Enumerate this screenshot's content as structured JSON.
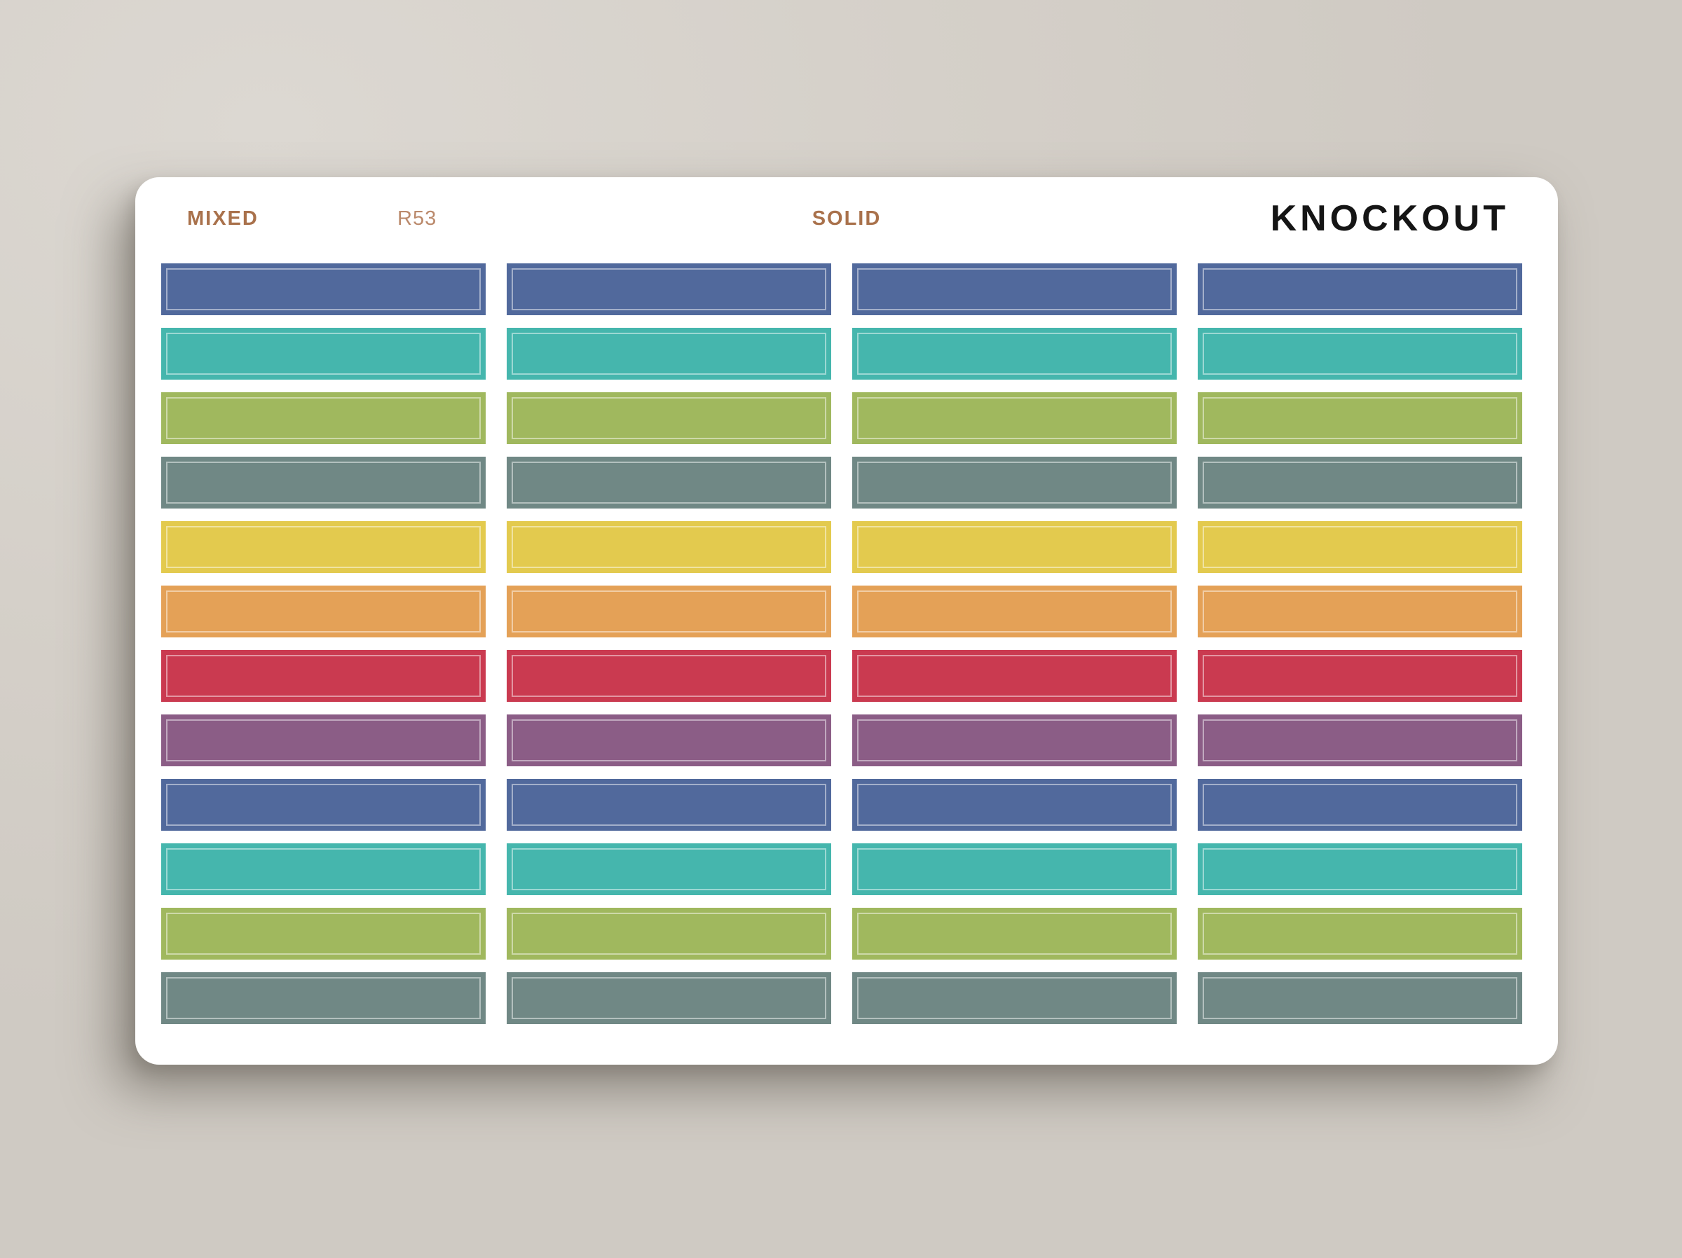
{
  "page": {
    "background_color": "#d5d0c9",
    "card_color": "#ffffff"
  },
  "sheet": {
    "header": {
      "collection_label": "MIXED",
      "sheet_code": "R53",
      "style_label": "SOLID",
      "brand": "KNOCKOUT"
    },
    "text_colors": {
      "accent": "#a9714b",
      "code": "#bb8a6c",
      "brand": "#151515"
    },
    "palette": {
      "blue": "#51699c",
      "teal": "#45b6ad",
      "green": "#a0b85e",
      "slate": "#708885",
      "yellow": "#e3ca4e",
      "orange": "#e4a157",
      "red": "#ca3a50",
      "purple": "#8b5d86"
    },
    "grid": {
      "columns": 4,
      "rows": 12,
      "row_colors": [
        "blue",
        "teal",
        "green",
        "slate",
        "yellow",
        "orange",
        "red",
        "purple",
        "blue",
        "teal",
        "green",
        "slate"
      ],
      "inner_outline_color": "rgba(255,255,255,0.47)"
    }
  }
}
